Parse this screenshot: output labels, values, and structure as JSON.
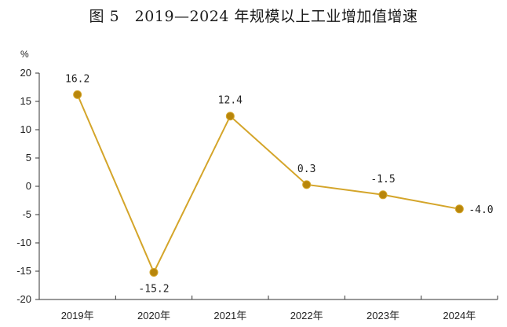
{
  "title": "图 5　2019—2024 年规模以上工业增加值增速",
  "chart_data": {
    "type": "line",
    "title": "图 5　2019—2024 年规模以上工业增加值增速",
    "unit": "%",
    "categories": [
      "2019年",
      "2020年",
      "2021年",
      "2022年",
      "2023年",
      "2024年"
    ],
    "series": [
      {
        "values": [
          16.2,
          -15.2,
          12.4,
          0.3,
          -1.5,
          -4.0
        ],
        "labels": [
          "16.2",
          "-15.2",
          "12.4",
          "0.3",
          "-1.5",
          "-4.0"
        ]
      }
    ],
    "ylim": [
      -20,
      20
    ],
    "yticks": [
      20,
      15,
      10,
      5,
      0,
      -5,
      -10,
      -15,
      -20
    ],
    "grid": false,
    "line_color": "#D4A52A",
    "marker_color": "#B8860B"
  }
}
